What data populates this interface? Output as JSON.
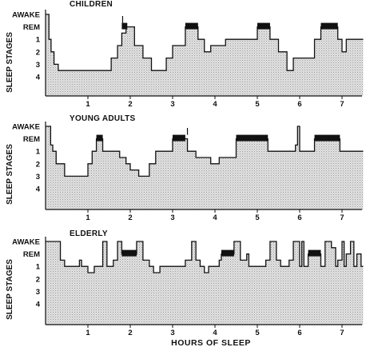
{
  "figure": {
    "xlabel": "HOURS OF SLEEP",
    "ylabel": "SLEEP STAGES"
  },
  "chart_data": [
    {
      "type": "area",
      "title": "CHILDREN",
      "ylabels": [
        "AWAKE",
        "REM",
        "1",
        "2",
        "3",
        "4"
      ],
      "xticks": [
        1,
        2,
        3,
        4,
        5,
        6,
        7
      ],
      "xlim": [
        0,
        7.5
      ],
      "rem_color": "#111111",
      "fill_color": "#d9d9d9",
      "steps": [
        [
          0,
          0
        ],
        [
          0.08,
          2
        ],
        [
          0.13,
          3
        ],
        [
          0.2,
          4
        ],
        [
          0.3,
          4.5
        ],
        [
          1.55,
          3.5
        ],
        [
          1.7,
          2.5
        ],
        [
          1.8,
          1.5
        ],
        [
          1.9,
          1
        ],
        [
          2.1,
          2.5
        ],
        [
          2.3,
          3.5
        ],
        [
          2.5,
          4.5
        ],
        [
          2.85,
          3.5
        ],
        [
          3.0,
          2.5
        ],
        [
          3.3,
          1
        ],
        [
          3.6,
          2
        ],
        [
          3.75,
          3
        ],
        [
          3.9,
          2.5
        ],
        [
          4.25,
          2
        ],
        [
          5.0,
          1
        ],
        [
          5.3,
          2
        ],
        [
          5.5,
          3
        ],
        [
          5.7,
          4.5
        ],
        [
          5.85,
          3.5
        ],
        [
          6.35,
          2
        ],
        [
          6.5,
          1
        ],
        [
          6.9,
          2
        ],
        [
          7.0,
          3
        ],
        [
          7.1,
          2
        ],
        [
          7.5,
          2
        ]
      ],
      "rem": [
        [
          1.8,
          1.93
        ],
        [
          3.3,
          3.6
        ],
        [
          5.0,
          5.3
        ],
        [
          6.5,
          6.9
        ]
      ],
      "awake_spikes": [
        1.82
      ]
    },
    {
      "type": "area",
      "title": "YOUNG ADULTS",
      "ylabels": [
        "AWAKE",
        "REM",
        "1",
        "2",
        "3",
        "4"
      ],
      "xticks": [
        1,
        2,
        3,
        4,
        5,
        6,
        7
      ],
      "xlim": [
        0,
        7.5
      ],
      "rem_color": "#111111",
      "fill_color": "#d9d9d9",
      "steps": [
        [
          0,
          0
        ],
        [
          0.12,
          1.5
        ],
        [
          0.17,
          2
        ],
        [
          0.25,
          3
        ],
        [
          0.45,
          4
        ],
        [
          1.0,
          3
        ],
        [
          1.1,
          2
        ],
        [
          1.2,
          1
        ],
        [
          1.35,
          2
        ],
        [
          1.75,
          2.5
        ],
        [
          1.9,
          3
        ],
        [
          2.0,
          3.5
        ],
        [
          2.2,
          4
        ],
        [
          2.45,
          3
        ],
        [
          2.6,
          2
        ],
        [
          3.0,
          1
        ],
        [
          3.35,
          2
        ],
        [
          3.55,
          2.5
        ],
        [
          3.9,
          3
        ],
        [
          4.1,
          2.5
        ],
        [
          4.5,
          1
        ],
        [
          5.25,
          2
        ],
        [
          5.9,
          1.5
        ],
        [
          5.95,
          0
        ],
        [
          6.0,
          2
        ],
        [
          6.35,
          1
        ],
        [
          6.95,
          2
        ],
        [
          7.5,
          2
        ]
      ],
      "rem": [
        [
          1.2,
          1.35
        ],
        [
          3.0,
          3.3
        ],
        [
          4.5,
          5.25
        ],
        [
          6.35,
          6.95
        ]
      ],
      "awake_spikes": [
        3.35
      ]
    },
    {
      "type": "area",
      "title": "ELDERLY",
      "ylabels": [
        "AWAKE",
        "REM",
        "1",
        "2",
        "3",
        "4"
      ],
      "xticks": [
        1,
        2,
        3,
        4,
        5,
        6,
        7
      ],
      "xlim": [
        0,
        7.5
      ],
      "rem_color": "#111111",
      "fill_color": "#d9d9d9",
      "steps": [
        [
          0,
          0
        ],
        [
          0.35,
          1.5
        ],
        [
          0.45,
          2
        ],
        [
          0.8,
          1.5
        ],
        [
          0.85,
          2
        ],
        [
          1.0,
          2.5
        ],
        [
          1.15,
          2
        ],
        [
          1.35,
          0
        ],
        [
          1.45,
          2
        ],
        [
          1.6,
          1.5
        ],
        [
          1.7,
          0
        ],
        [
          1.8,
          1
        ],
        [
          2.15,
          0
        ],
        [
          2.3,
          1.5
        ],
        [
          2.45,
          2
        ],
        [
          2.55,
          2.5
        ],
        [
          2.7,
          2
        ],
        [
          3.15,
          2
        ],
        [
          3.3,
          1.5
        ],
        [
          3.45,
          0
        ],
        [
          3.55,
          1.5
        ],
        [
          3.65,
          2
        ],
        [
          3.75,
          2.5
        ],
        [
          3.85,
          2
        ],
        [
          4.1,
          1.5
        ],
        [
          4.15,
          1
        ],
        [
          4.45,
          0
        ],
        [
          4.6,
          1.5
        ],
        [
          4.75,
          1
        ],
        [
          4.8,
          2
        ],
        [
          5.2,
          1.5
        ],
        [
          5.3,
          0
        ],
        [
          5.45,
          1.5
        ],
        [
          5.55,
          2
        ],
        [
          5.75,
          1.5
        ],
        [
          5.85,
          0
        ],
        [
          6.0,
          2
        ],
        [
          6.05,
          0
        ],
        [
          6.1,
          2
        ],
        [
          6.2,
          1
        ],
        [
          6.5,
          2
        ],
        [
          6.6,
          0
        ],
        [
          6.75,
          0.5
        ],
        [
          6.85,
          2
        ],
        [
          6.9,
          1.5
        ],
        [
          7.0,
          0
        ],
        [
          7.05,
          2
        ],
        [
          7.1,
          1
        ],
        [
          7.2,
          0
        ],
        [
          7.28,
          2
        ],
        [
          7.35,
          1
        ],
        [
          7.45,
          2
        ],
        [
          7.5,
          2
        ]
      ],
      "rem": [
        [
          1.8,
          2.15
        ],
        [
          4.15,
          4.45
        ],
        [
          6.2,
          6.5
        ]
      ],
      "awake_spikes": []
    }
  ]
}
